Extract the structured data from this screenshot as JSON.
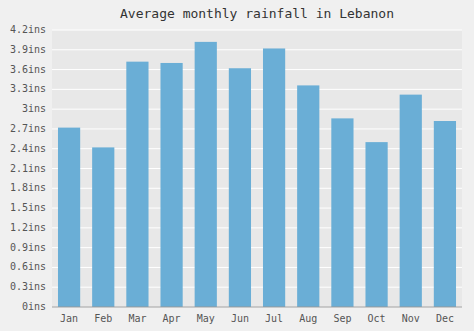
{
  "chart_data": {
    "type": "bar",
    "title": "Average monthly rainfall in Lebanon",
    "categories": [
      "Jan",
      "Feb",
      "Mar",
      "Apr",
      "May",
      "Jun",
      "Jul",
      "Aug",
      "Sep",
      "Oct",
      "Nov",
      "Dec"
    ],
    "values": [
      2.72,
      2.42,
      3.72,
      3.7,
      4.02,
      3.62,
      3.92,
      3.36,
      2.86,
      2.5,
      3.22,
      2.82
    ],
    "color": "#6aaed6",
    "ylim": [
      0,
      4.2
    ],
    "yticks": [
      {
        "value": 0,
        "label": "0ins"
      },
      {
        "value": 0.3,
        "label": "0.3ins"
      },
      {
        "value": 0.6,
        "label": "0.6ins"
      },
      {
        "value": 0.9,
        "label": "0.9ins"
      },
      {
        "value": 1.2,
        "label": "1.2ins"
      },
      {
        "value": 1.5,
        "label": "1.5ins"
      },
      {
        "value": 1.8,
        "label": "1.8ins"
      },
      {
        "value": 2.1,
        "label": "2.1ins"
      },
      {
        "value": 2.4,
        "label": "2.4ins"
      },
      {
        "value": 2.7,
        "label": "2.7ins"
      },
      {
        "value": 3,
        "label": "3ins"
      },
      {
        "value": 3.3,
        "label": "3.3ins"
      },
      {
        "value": 3.6,
        "label": "3.6ins"
      },
      {
        "value": 3.9,
        "label": "3.9ins"
      },
      {
        "value": 4.2,
        "label": "4.2ins"
      }
    ],
    "grid": true
  }
}
